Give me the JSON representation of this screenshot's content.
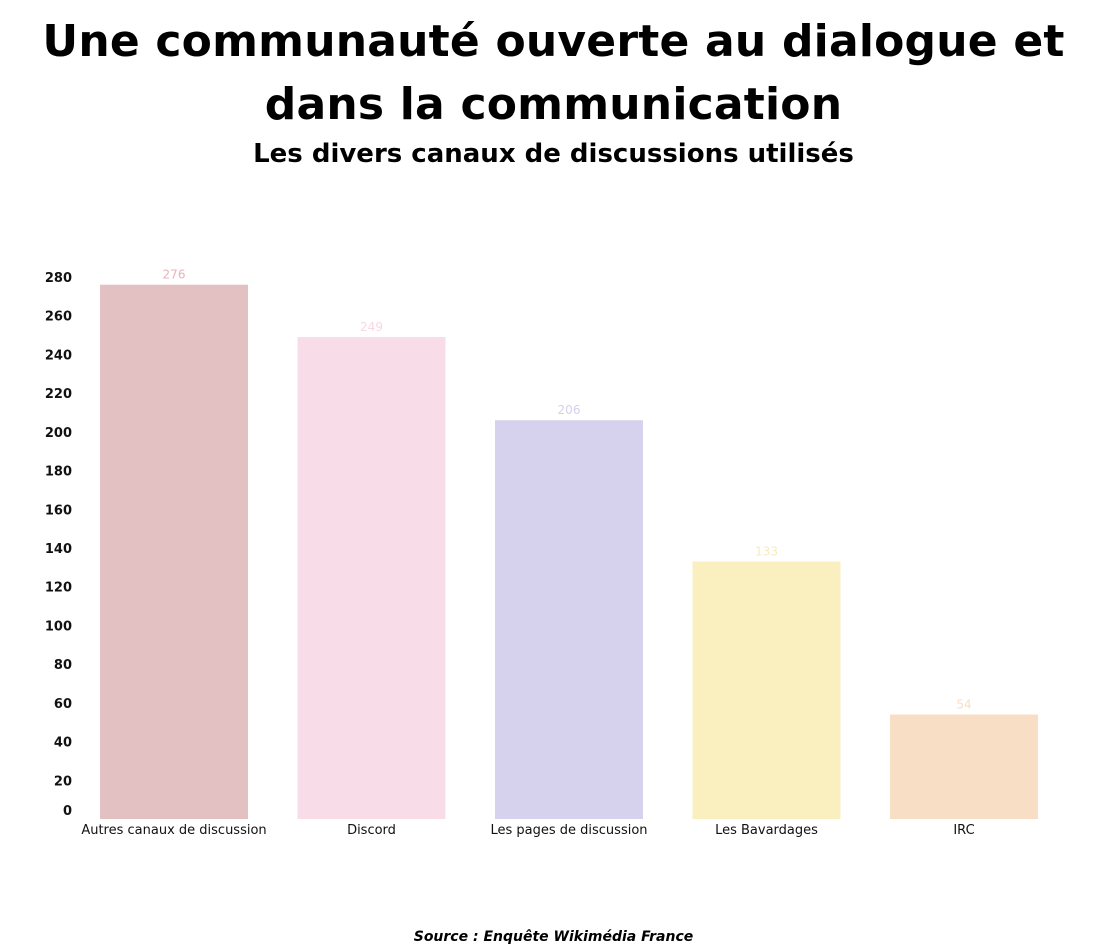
{
  "title": "Une communauté ouverte au dialogue et dans la communication",
  "subtitle": "Les divers canaux de discussions utilisés",
  "source": "Source : Enquête Wikimédia France",
  "chart_data": {
    "type": "bar",
    "categories": [
      "Autres canaux de discussion",
      "Discord",
      "Les pages de discussion",
      "Les Bavardages",
      "IRC"
    ],
    "values": [
      276,
      249,
      206,
      133,
      54
    ],
    "data_labels": [
      "276",
      "249",
      "206",
      "133",
      "54"
    ],
    "colors": [
      "#e3c0c1",
      "#f8dce7",
      "#d6d1ec",
      "#faefbf",
      "#f8dec4"
    ],
    "label_colors": [
      "#eab1b8",
      "#f8d7e4",
      "#d5d0ed",
      "#f8eabd",
      "#f8dfc6"
    ],
    "y_ticks": [
      0,
      20,
      40,
      60,
      80,
      100,
      120,
      140,
      160,
      180,
      200,
      220,
      240,
      260,
      280
    ],
    "ylim": [
      0,
      280
    ],
    "grid": false,
    "legend": "none",
    "xlabel": "",
    "ylabel": ""
  }
}
